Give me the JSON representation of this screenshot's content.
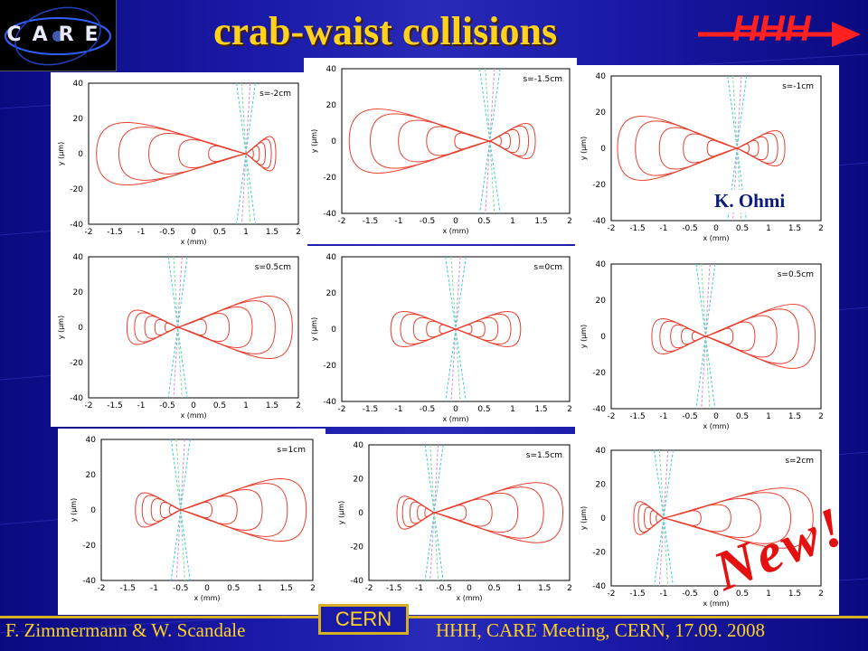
{
  "header": {
    "title": "crab-waist collisions",
    "tag": "HHH"
  },
  "logo": {
    "text": "CARE"
  },
  "plots": [
    {
      "label": "s=-2cm"
    },
    {
      "label": "s=-1.5cm"
    },
    {
      "label": "s=-1cm"
    },
    {
      "label": "s=0.5cm"
    },
    {
      "label": "s=0cm"
    },
    {
      "label": "s=0.5cm"
    },
    {
      "label": "s=1cm"
    },
    {
      "label": "s=1.5cm"
    },
    {
      "label": "s=2cm"
    }
  ],
  "axes": {
    "xlabel": "x (mm)",
    "ylabel": "y (μm)",
    "xticks": [
      "-2",
      "-1.5",
      "-1",
      "-0.5",
      "0",
      "0.5",
      "1",
      "1.5",
      "2"
    ],
    "yticks": [
      "40",
      "20",
      "0",
      "-20",
      "-40"
    ]
  },
  "annotations": {
    "author": "K. Ohmi",
    "stamp": "New!"
  },
  "footer": {
    "left": "F. Zimmermann & W. Scandale",
    "center": "CERN",
    "right": "HHH, CARE Meeting, CERN, 17.09. 2008"
  }
}
